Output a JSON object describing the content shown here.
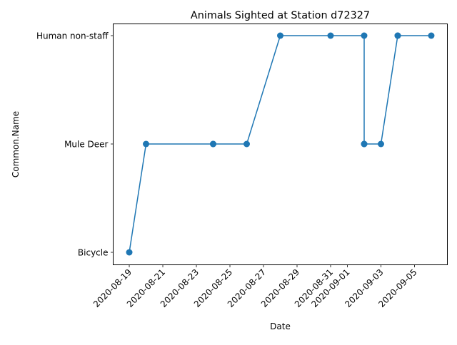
{
  "chart_data": {
    "type": "line",
    "title": "Animals Sighted at Station d72327",
    "xlabel": "Date",
    "ylabel": "Common.Name",
    "categories_y": [
      "Bicycle",
      "Mule Deer",
      "Human non-staff"
    ],
    "x_ticks": [
      "2020-08-19",
      "2020-08-21",
      "2020-08-23",
      "2020-08-25",
      "2020-08-27",
      "2020-08-29",
      "2020-08-31",
      "2020-09-01",
      "2020-09-03",
      "2020-09-05"
    ],
    "x_range": [
      "2020-08-18T01:00",
      "2020-09-06T23:00"
    ],
    "grid": false,
    "series_color": "#1f77b4",
    "points": [
      {
        "x": "2020-08-19",
        "y": "Bicycle"
      },
      {
        "x": "2020-08-20",
        "y": "Mule Deer"
      },
      {
        "x": "2020-08-24",
        "y": "Mule Deer"
      },
      {
        "x": "2020-08-24",
        "y": "Mule Deer"
      },
      {
        "x": "2020-08-26",
        "y": "Mule Deer"
      },
      {
        "x": "2020-08-28",
        "y": "Human non-staff"
      },
      {
        "x": "2020-08-31",
        "y": "Human non-staff"
      },
      {
        "x": "2020-09-02",
        "y": "Human non-staff"
      },
      {
        "x": "2020-09-02",
        "y": "Mule Deer"
      },
      {
        "x": "2020-09-02",
        "y": "Mule Deer"
      },
      {
        "x": "2020-09-03",
        "y": "Mule Deer"
      },
      {
        "x": "2020-09-04",
        "y": "Human non-staff"
      },
      {
        "x": "2020-09-04",
        "y": "Human non-staff"
      },
      {
        "x": "2020-09-06",
        "y": "Human non-staff"
      }
    ]
  }
}
